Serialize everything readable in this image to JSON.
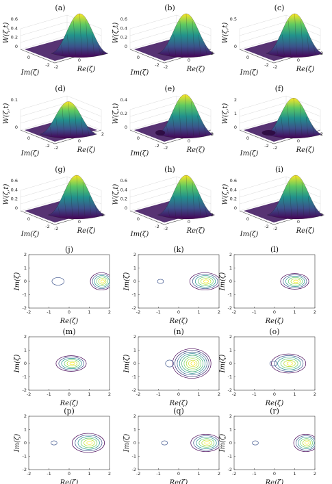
{
  "figure": {
    "surface_panels": [
      {
        "label": "(a)",
        "zlabel": "W(ζ,t)",
        "ylabel": "Im(ζ)",
        "xlabel": "Re(ζ)",
        "zticks": [
          "0",
          "0.2",
          "0.4",
          "0.6"
        ],
        "xticks": [
          "-2",
          "0",
          "2"
        ],
        "yticks": [
          "0",
          "-2"
        ],
        "peak_x": 1.3,
        "peak_h": 1.0,
        "dip": 0
      },
      {
        "label": "(b)",
        "zlabel": "W(ζ,t)",
        "ylabel": "Im(ζ)",
        "xlabel": "Re(ζ)",
        "zticks": [
          "0",
          "0.2",
          "0.4",
          "0.6"
        ],
        "xticks": [
          "-2",
          "0",
          "2"
        ],
        "yticks": [
          "0",
          "-2"
        ],
        "peak_x": 1.0,
        "peak_h": 1.0,
        "dip": 0
      },
      {
        "label": "(c)",
        "zlabel": "W(ζ,t)",
        "ylabel": "Im(ζ)",
        "xlabel": "Re(ζ)",
        "zticks": [
          "0",
          "0.5"
        ],
        "xticks": [
          "-2",
          "0",
          "2"
        ],
        "yticks": [
          "0",
          "-2"
        ],
        "peak_x": 0.9,
        "peak_h": 1.0,
        "dip": 0
      },
      {
        "label": "(d)",
        "zlabel": "W(ζ,t)",
        "ylabel": "Im(ζ)",
        "xlabel": "Re(ζ)",
        "zticks": [
          "0",
          "0.1"
        ],
        "xticks": [
          "-2",
          "0",
          "2"
        ],
        "yticks": [
          "0",
          "-2"
        ],
        "peak_x": 0.2,
        "peak_h": 0.8,
        "dip": 0
      },
      {
        "label": "(e)",
        "zlabel": "W(ζ,t)",
        "ylabel": "Im(ζ)",
        "xlabel": "Re(ζ)",
        "zticks": [
          "0",
          "0.2",
          "0.4"
        ],
        "xticks": [
          "-2",
          "0",
          "2"
        ],
        "yticks": [
          "0",
          "-2"
        ],
        "peak_x": 0.9,
        "peak_h": 1.0,
        "dip": 0.35
      },
      {
        "label": "(f)",
        "zlabel": "W(ζ,t)",
        "ylabel": "Im(ζ)",
        "xlabel": "Re(ζ)",
        "zticks": [
          "0",
          "1",
          "2"
        ],
        "xticks": [
          "-2",
          "0",
          "2"
        ],
        "yticks": [
          "0",
          "-2"
        ],
        "peak_x": 0.8,
        "peak_h": 0.9,
        "dip": 0.5
      },
      {
        "label": "(g)",
        "zlabel": "W(ζ,t)",
        "ylabel": "Im(ζ)",
        "xlabel": "Re(ζ)",
        "zticks": [
          "0",
          "0.2",
          "0.4",
          "0.6"
        ],
        "xticks": [
          "-2",
          "0",
          "2"
        ],
        "yticks": [
          "0",
          "-2"
        ],
        "peak_x": 1.0,
        "peak_h": 1.0,
        "dip": 0
      },
      {
        "label": "(h)",
        "zlabel": "W(ζ,t)",
        "ylabel": "Im(ζ)",
        "xlabel": "Re(ζ)",
        "zticks": [
          "0",
          "0.2",
          "0.4",
          "0.6"
        ],
        "xticks": [
          "-2",
          "0",
          "2"
        ],
        "yticks": [
          "0",
          "-2"
        ],
        "peak_x": 1.0,
        "peak_h": 1.0,
        "dip": 0
      },
      {
        "label": "(i)",
        "zlabel": "W(ζ,t)",
        "ylabel": "Im(ζ)",
        "xlabel": "Re(ζ)",
        "zticks": [
          "0",
          "0.2",
          "0.4",
          "0.6"
        ],
        "xticks": [
          "-2",
          "0",
          "2"
        ],
        "yticks": [
          "0",
          "-2"
        ],
        "peak_x": 1.0,
        "peak_h": 1.0,
        "dip": 0
      }
    ],
    "contour_panels": [
      {
        "label": "(j)",
        "cx": 1.6,
        "rx": 0.55,
        "ry": 0.5,
        "levels": 6,
        "side": {
          "cx": -0.55,
          "rx": 0.3,
          "ry": 0.22
        }
      },
      {
        "label": "(k)",
        "cx": 1.3,
        "rx": 0.75,
        "ry": 0.5,
        "levels": 6,
        "side": {
          "cx": -0.9,
          "rx": 0.15,
          "ry": 0.12
        }
      },
      {
        "label": "(l)",
        "cx": 1.0,
        "rx": 0.7,
        "ry": 0.45,
        "levels": 6,
        "side": null
      },
      {
        "label": "(m)",
        "cx": 0.1,
        "rx": 0.75,
        "ry": 0.45,
        "levels": 6,
        "side": null
      },
      {
        "label": "(n)",
        "cx": 0.65,
        "rx": 0.95,
        "ry": 0.85,
        "levels": 9,
        "side": {
          "cx": -0.45,
          "rx": 0.2,
          "ry": 0.2
        }
      },
      {
        "label": "(o)",
        "cx": 0.7,
        "rx": 0.85,
        "ry": 0.55,
        "levels": 6,
        "side": {
          "cx": -0.05,
          "rx": 0.18,
          "ry": 0.15
        }
      },
      {
        "label": "(p)",
        "cx": 0.95,
        "rx": 0.8,
        "ry": 0.55,
        "levels": 6,
        "side": {
          "cx": -0.75,
          "rx": 0.15,
          "ry": 0.12
        }
      },
      {
        "label": "(q)",
        "cx": 1.35,
        "rx": 0.75,
        "ry": 0.5,
        "levels": 6,
        "side": {
          "cx": -0.7,
          "rx": 0.15,
          "ry": 0.12
        }
      },
      {
        "label": "(r)",
        "cx": 1.55,
        "rx": 0.6,
        "ry": 0.5,
        "levels": 6,
        "side": {
          "cx": -0.95,
          "rx": 0.15,
          "ry": 0.12
        }
      }
    ],
    "contour_axes": {
      "xlabel": "Re(ζ)",
      "ylabel": "Im(ζ)",
      "xticks": [
        "-2",
        "-1",
        "0",
        "1",
        "2"
      ],
      "yticks": [
        "2",
        "1",
        "0",
        "-1",
        "-2"
      ],
      "xlim": [
        -2,
        2
      ],
      "ylim": [
        -2,
        2
      ]
    },
    "colors": [
      "#440154",
      "#3b528b",
      "#21918c",
      "#5ec962",
      "#b5de2b",
      "#fde725"
    ]
  }
}
